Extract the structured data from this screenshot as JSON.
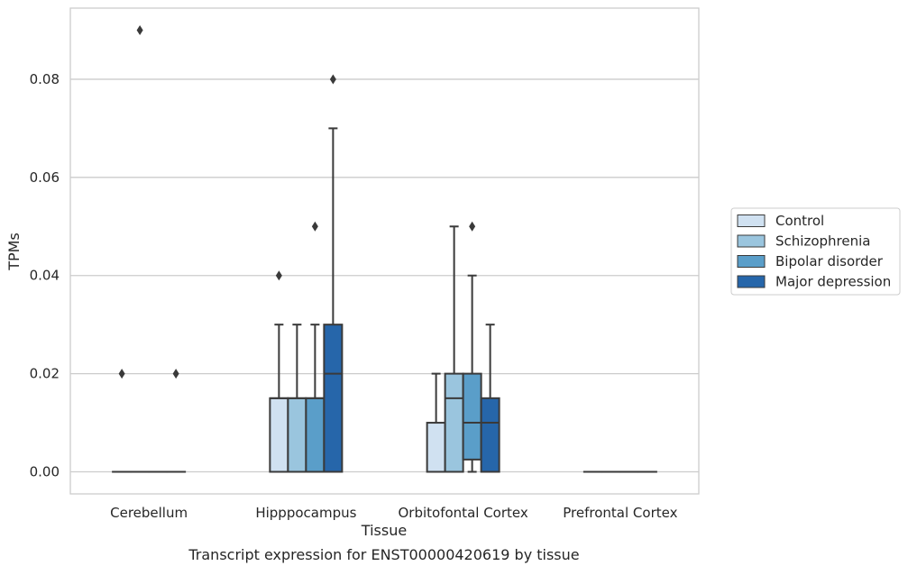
{
  "chart_data": {
    "type": "box",
    "caption": "Transcript expression for ENST00000420619 by tissue",
    "xlabel": "Tissue",
    "ylabel": "TPMs",
    "ylim": [
      -0.0045,
      0.0945
    ],
    "yticks": [
      0.0,
      0.02,
      0.04,
      0.06,
      0.08
    ],
    "ytick_labels": [
      "0.00",
      "0.02",
      "0.04",
      "0.06",
      "0.08"
    ],
    "grid": "horizontal",
    "legend_position": "right, outside",
    "categories": [
      "Cerebellum",
      "Hipppocampus",
      "Orbitofontal Cortex",
      "Prefrontal Cortex"
    ],
    "series": [
      {
        "name": "Control",
        "color": "#d0e1f1",
        "boxes": [
          {
            "q1": 0,
            "median": 0,
            "q3": 0,
            "whisker_low": 0,
            "whisker_high": 0,
            "outliers": [
              0.02
            ]
          },
          {
            "q1": 0,
            "median": 0.015,
            "q3": 0.015,
            "whisker_low": 0,
            "whisker_high": 0.03,
            "outliers": [
              0.04
            ]
          },
          {
            "q1": 0,
            "median": 0,
            "q3": 0.01,
            "whisker_low": 0,
            "whisker_high": 0.02,
            "outliers": []
          },
          {
            "q1": 0,
            "median": 0,
            "q3": 0,
            "whisker_low": 0,
            "whisker_high": 0,
            "outliers": []
          }
        ]
      },
      {
        "name": "Schizophrenia",
        "color": "#9ac5de",
        "boxes": [
          {
            "q1": 0,
            "median": 0,
            "q3": 0,
            "whisker_low": 0,
            "whisker_high": 0,
            "outliers": [
              0.09
            ]
          },
          {
            "q1": 0,
            "median": 0.015,
            "q3": 0.015,
            "whisker_low": 0,
            "whisker_high": 0.03,
            "outliers": []
          },
          {
            "q1": 0,
            "median": 0.015,
            "q3": 0.02,
            "whisker_low": 0,
            "whisker_high": 0.05,
            "outliers": []
          },
          {
            "q1": 0,
            "median": 0,
            "q3": 0,
            "whisker_low": 0,
            "whisker_high": 0,
            "outliers": []
          }
        ]
      },
      {
        "name": "Bipolar disorder",
        "color": "#5a9ec9",
        "boxes": [
          {
            "q1": 0,
            "median": 0,
            "q3": 0,
            "whisker_low": 0,
            "whisker_high": 0,
            "outliers": []
          },
          {
            "q1": 0,
            "median": 0.015,
            "q3": 0.015,
            "whisker_low": 0,
            "whisker_high": 0.03,
            "outliers": [
              0.05
            ]
          },
          {
            "q1": 0.0025,
            "median": 0.01,
            "q3": 0.02,
            "whisker_low": 0,
            "whisker_high": 0.04,
            "outliers": [
              0.05
            ]
          },
          {
            "q1": 0,
            "median": 0,
            "q3": 0,
            "whisker_low": 0,
            "whisker_high": 0,
            "outliers": []
          }
        ]
      },
      {
        "name": "Major depression",
        "color": "#2666aa",
        "boxes": [
          {
            "q1": 0,
            "median": 0,
            "q3": 0,
            "whisker_low": 0,
            "whisker_high": 0,
            "outliers": [
              0.02
            ]
          },
          {
            "q1": 0,
            "median": 0.02,
            "q3": 0.03,
            "whisker_low": 0,
            "whisker_high": 0.07,
            "outliers": [
              0.08
            ]
          },
          {
            "q1": 0,
            "median": 0.01,
            "q3": 0.015,
            "whisker_low": 0,
            "whisker_high": 0.03,
            "outliers": []
          },
          {
            "q1": 0,
            "median": 0,
            "q3": 0,
            "whisker_low": 0,
            "whisker_high": 0,
            "outliers": []
          }
        ]
      }
    ],
    "style": {
      "grid_color": "#cccccc",
      "frame_color": "#cccccc",
      "line_color": "#3a3a3a",
      "text_color": "#262626"
    }
  }
}
